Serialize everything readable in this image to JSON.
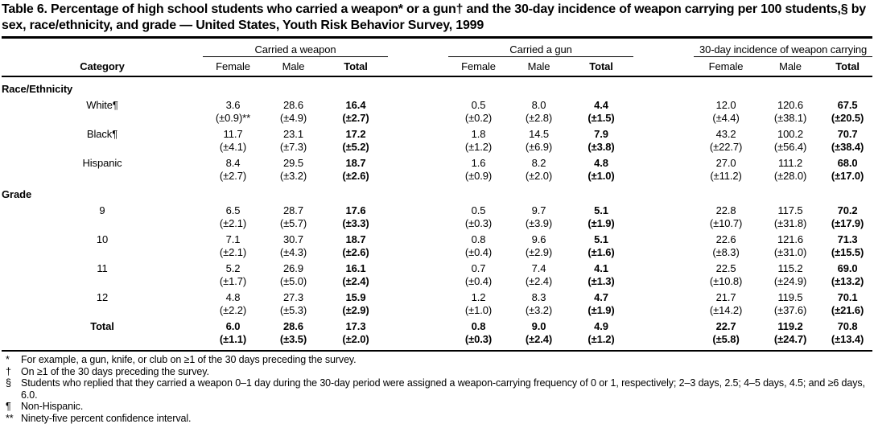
{
  "title": "Table 6. Percentage of high school students who carried a weapon* or a gun† and the 30-day incidence of weapon carrying per 100 students,§ by sex, race/ethnicity, and grade — United States, Youth Risk Behavior Survey, 1999",
  "table": {
    "category_header": "Category",
    "groups": [
      {
        "label": "Carried a weapon",
        "cols": [
          "Female",
          "Male",
          "Total"
        ]
      },
      {
        "label": "Carried a gun",
        "cols": [
          "Female",
          "Male",
          "Total"
        ]
      },
      {
        "label": "30-day incidence of weapon carrying",
        "cols": [
          "Female",
          "Male",
          "Total"
        ]
      }
    ],
    "rows": [
      {
        "type": "section",
        "label": "Race/Ethnicity"
      },
      {
        "type": "data",
        "label": "White¶",
        "indent": true,
        "bold": false,
        "values": [
          "3.6",
          "28.6",
          "16.4",
          "0.5",
          "8.0",
          "4.4",
          "12.0",
          "120.6",
          "67.5"
        ],
        "ci": [
          "(±0.9)**",
          "(±4.9)",
          "(±2.7)",
          "(±0.2)",
          "(±2.8)",
          "(±1.5)",
          "(±4.4)",
          "(±38.1)",
          "(±20.5)"
        ]
      },
      {
        "type": "data",
        "label": "Black¶",
        "indent": true,
        "bold": false,
        "values": [
          "11.7",
          "23.1",
          "17.2",
          "1.8",
          "14.5",
          "7.9",
          "43.2",
          "100.2",
          "70.7"
        ],
        "ci": [
          "(±4.1)",
          "(±7.3)",
          "(±5.2)",
          "(±1.2)",
          "(±6.9)",
          "(±3.8)",
          "(±22.7)",
          "(±56.4)",
          "(±38.4)"
        ]
      },
      {
        "type": "data",
        "label": "Hispanic",
        "indent": true,
        "bold": false,
        "values": [
          "8.4",
          "29.5",
          "18.7",
          "1.6",
          "8.2",
          "4.8",
          "27.0",
          "111.2",
          "68.0"
        ],
        "ci": [
          "(±2.7)",
          "(±3.2)",
          "(±2.6)",
          "(±0.9)",
          "(±2.0)",
          "(±1.0)",
          "(±11.2)",
          "(±28.0)",
          "(±17.0)"
        ]
      },
      {
        "type": "section",
        "label": "Grade"
      },
      {
        "type": "data",
        "label": "9",
        "indent": true,
        "bold": false,
        "values": [
          "6.5",
          "28.7",
          "17.6",
          "0.5",
          "9.7",
          "5.1",
          "22.8",
          "117.5",
          "70.2"
        ],
        "ci": [
          "(±2.1)",
          "(±5.7)",
          "(±3.3)",
          "(±0.3)",
          "(±3.9)",
          "(±1.9)",
          "(±10.7)",
          "(±31.8)",
          "(±17.9)"
        ]
      },
      {
        "type": "data",
        "label": "10",
        "indent": true,
        "bold": false,
        "values": [
          "7.1",
          "30.7",
          "18.7",
          "0.8",
          "9.6",
          "5.1",
          "22.6",
          "121.6",
          "71.3"
        ],
        "ci": [
          "(±2.1)",
          "(±4.3)",
          "(±2.6)",
          "(±0.4)",
          "(±2.9)",
          "(±1.6)",
          "(±8.3)",
          "(±31.0)",
          "(±15.5)"
        ]
      },
      {
        "type": "data",
        "label": "11",
        "indent": true,
        "bold": false,
        "values": [
          "5.2",
          "26.9",
          "16.1",
          "0.7",
          "7.4",
          "4.1",
          "22.5",
          "115.2",
          "69.0"
        ],
        "ci": [
          "(±1.7)",
          "(±5.0)",
          "(±2.4)",
          "(±0.4)",
          "(±2.4)",
          "(±1.3)",
          "(±10.8)",
          "(±24.9)",
          "(±13.2)"
        ]
      },
      {
        "type": "data",
        "label": "12",
        "indent": true,
        "bold": false,
        "values": [
          "4.8",
          "27.3",
          "15.9",
          "1.2",
          "8.3",
          "4.7",
          "21.7",
          "119.5",
          "70.1"
        ],
        "ci": [
          "(±2.2)",
          "(±5.3)",
          "(±2.9)",
          "(±1.0)",
          "(±3.2)",
          "(±1.9)",
          "(±14.2)",
          "(±37.6)",
          "(±21.6)"
        ]
      },
      {
        "type": "data",
        "label": "Total",
        "indent": false,
        "bold": true,
        "values": [
          "6.0",
          "28.6",
          "17.3",
          "0.8",
          "9.0",
          "4.9",
          "22.7",
          "119.2",
          "70.8"
        ],
        "ci": [
          "(±1.1)",
          "(±3.5)",
          "(±2.0)",
          "(±0.3)",
          "(±2.4)",
          "(±1.2)",
          "(±5.8)",
          "(±24.7)",
          "(±13.4)"
        ]
      }
    ]
  },
  "footnotes": [
    {
      "marker": "*",
      "text": "For example, a gun, knife, or club on ≥1 of the 30 days preceding the survey."
    },
    {
      "marker": "†",
      "text": "On ≥1 of the 30 days preceding the survey."
    },
    {
      "marker": "§",
      "text": "Students who replied that they carried a weapon 0–1 day during the 30-day period were assigned a weapon-carrying frequency of 0 or 1, respectively; 2–3 days, 2.5; 4–5 days, 4.5; and ≥6 days, 6.0."
    },
    {
      "marker": "¶",
      "text": "Non-Hispanic."
    },
    {
      "marker": "**",
      "text": "Ninety-five percent confidence interval."
    }
  ]
}
